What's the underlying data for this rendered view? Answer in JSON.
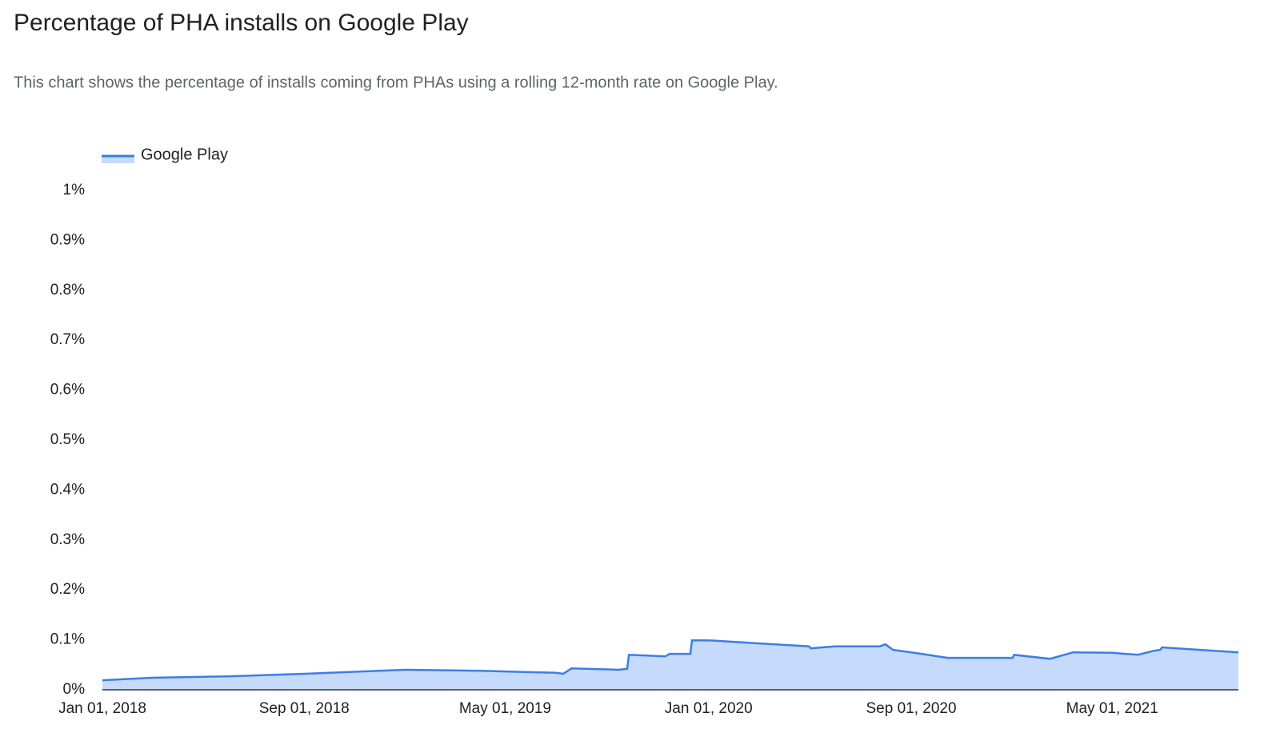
{
  "chart_data": {
    "type": "area",
    "title": "Percentage of PHA installs on Google Play",
    "subtitle": "This chart shows the percentage of installs coming from PHAs using a rolling 12-month rate on Google Play.",
    "x": [
      "2018-01-01",
      "2018-03-01",
      "2018-06-01",
      "2018-09-01",
      "2018-12-01",
      "2019-01-01",
      "2019-04-01",
      "2019-07-01",
      "2019-07-10",
      "2019-07-20",
      "2019-09-15",
      "2019-09-25",
      "2019-09-27",
      "2019-11-10",
      "2019-11-15",
      "2019-12-10",
      "2019-12-12",
      "2020-01-01",
      "2020-03-01",
      "2020-05-01",
      "2020-05-03",
      "2020-06-01",
      "2020-07-25",
      "2020-08-01",
      "2020-08-10",
      "2020-09-01",
      "2020-10-15",
      "2021-01-01",
      "2021-01-03",
      "2021-02-15",
      "2021-03-15",
      "2021-05-01",
      "2021-06-01",
      "2021-06-20",
      "2021-06-28",
      "2021-06-30",
      "2021-08-15",
      "2021-09-30"
    ],
    "series": [
      {
        "name": "Google Play",
        "color": "#3b7ee6",
        "fill": "#c6dafc",
        "values": [
          0.019,
          0.024,
          0.027,
          0.032,
          0.038,
          0.04,
          0.038,
          0.034,
          0.032,
          0.043,
          0.04,
          0.042,
          0.07,
          0.067,
          0.072,
          0.072,
          0.099,
          0.099,
          0.093,
          0.087,
          0.083,
          0.087,
          0.087,
          0.091,
          0.08,
          0.075,
          0.064,
          0.064,
          0.07,
          0.062,
          0.075,
          0.074,
          0.07,
          0.078,
          0.08,
          0.085,
          0.08,
          0.075
        ]
      }
    ],
    "xlim": [
      "2018-01-01",
      "2021-09-30"
    ],
    "xticks": [
      {
        "value": "2018-01-01",
        "label": "Jan 01, 2018"
      },
      {
        "value": "2018-09-01",
        "label": "Sep 01, 2018"
      },
      {
        "value": "2019-05-01",
        "label": "May 01, 2019"
      },
      {
        "value": "2020-01-01",
        "label": "Jan 01, 2020"
      },
      {
        "value": "2020-09-01",
        "label": "Sep 01, 2020"
      },
      {
        "value": "2021-05-01",
        "label": "May 01, 2021"
      }
    ],
    "ylim": [
      0,
      1
    ],
    "yticks": [
      {
        "value": 0,
        "label": "0%"
      },
      {
        "value": 0.1,
        "label": "0.1%"
      },
      {
        "value": 0.2,
        "label": "0.2%"
      },
      {
        "value": 0.3,
        "label": "0.3%"
      },
      {
        "value": 0.4,
        "label": "0.4%"
      },
      {
        "value": 0.5,
        "label": "0.5%"
      },
      {
        "value": 0.6,
        "label": "0.6%"
      },
      {
        "value": 0.7,
        "label": "0.7%"
      },
      {
        "value": 0.8,
        "label": "0.8%"
      },
      {
        "value": 0.9,
        "label": "0.9%"
      },
      {
        "value": 1,
        "label": "1%"
      }
    ],
    "legend": "top-left"
  }
}
